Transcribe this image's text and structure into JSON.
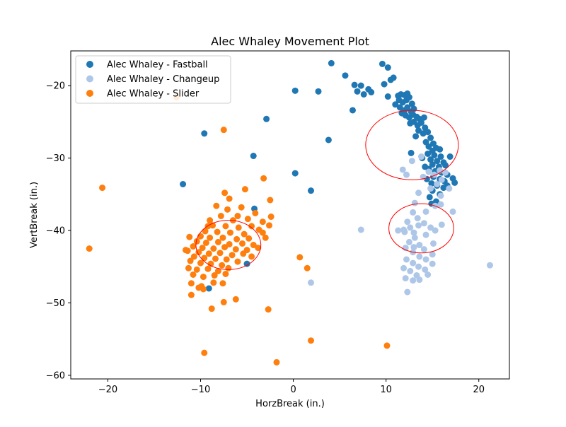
{
  "chart_data": {
    "type": "scatter",
    "title": "Alec Whaley Movement Plot",
    "xlabel": "HorzBreak (in.)",
    "ylabel": "VertBreak (in.)",
    "xlim": [
      -24,
      23.3
    ],
    "ylim": [
      -60.5,
      -15.2
    ],
    "xticks": [
      -20,
      -10,
      0,
      10,
      20
    ],
    "xtick_labels": [
      "−20",
      "−10",
      "0",
      "10",
      "20"
    ],
    "yticks": [
      -20,
      -30,
      -40,
      -50,
      -60
    ],
    "ytick_labels": [
      "−20",
      "−30",
      "−40",
      "−50",
      "−60"
    ],
    "grid": false,
    "legend_position": "top-left",
    "series": [
      {
        "name": "Alec Whaley - Fastball",
        "color": "#1f77b4",
        "points": [
          [
            4.1,
            -16.9
          ],
          [
            9.6,
            -17.0
          ],
          [
            10.2,
            -17.5
          ],
          [
            5.6,
            -18.6
          ],
          [
            6.6,
            -19.9
          ],
          [
            7.3,
            -20.0
          ],
          [
            6.9,
            -20.8
          ],
          [
            8.1,
            -20.5
          ],
          [
            8.4,
            -20.9
          ],
          [
            7.6,
            -21.2
          ],
          [
            10.2,
            -21.5
          ],
          [
            9.8,
            -19.8
          ],
          [
            10.5,
            -19.2
          ],
          [
            10.8,
            -18.9
          ],
          [
            0.2,
            -20.7
          ],
          [
            2.7,
            -20.8
          ],
          [
            6.4,
            -23.4
          ],
          [
            3.8,
            -27.5
          ],
          [
            -9.6,
            -26.6
          ],
          [
            -2.9,
            -24.6
          ],
          [
            -4.3,
            -29.7
          ],
          [
            -11.9,
            -33.6
          ],
          [
            0.2,
            -32.1
          ],
          [
            1.9,
            -34.5
          ],
          [
            -4.2,
            -37.0
          ],
          [
            -5.0,
            -44.6
          ],
          [
            -9.1,
            -48.0
          ],
          [
            11.3,
            -21.4
          ],
          [
            11.6,
            -21.2
          ],
          [
            12.0,
            -21.3
          ],
          [
            12.3,
            -21.1
          ],
          [
            11.4,
            -22.0
          ],
          [
            11.8,
            -22.3
          ],
          [
            12.2,
            -22.0
          ],
          [
            12.5,
            -21.6
          ],
          [
            12.8,
            -22.5
          ],
          [
            11.0,
            -22.6
          ],
          [
            11.5,
            -23.0
          ],
          [
            12.0,
            -23.4
          ],
          [
            12.3,
            -23.0
          ],
          [
            12.7,
            -23.6
          ],
          [
            13.0,
            -23.2
          ],
          [
            11.7,
            -23.8
          ],
          [
            12.1,
            -24.1
          ],
          [
            12.5,
            -24.4
          ],
          [
            12.9,
            -24.0
          ],
          [
            13.3,
            -24.3
          ],
          [
            13.6,
            -24.6
          ],
          [
            13.0,
            -25.0
          ],
          [
            12.6,
            -25.2
          ],
          [
            13.4,
            -25.5
          ],
          [
            13.8,
            -25.1
          ],
          [
            14.1,
            -24.4
          ],
          [
            14.2,
            -25.8
          ],
          [
            13.5,
            -26.2
          ],
          [
            14.0,
            -26.6
          ],
          [
            14.5,
            -26.4
          ],
          [
            13.2,
            -27.0
          ],
          [
            14.8,
            -27.2
          ],
          [
            14.3,
            -27.8
          ],
          [
            15.1,
            -28.0
          ],
          [
            14.6,
            -28.4
          ],
          [
            15.4,
            -28.6
          ],
          [
            15.0,
            -29.0
          ],
          [
            15.8,
            -28.8
          ],
          [
            14.5,
            -29.4
          ],
          [
            15.2,
            -29.6
          ],
          [
            15.9,
            -29.8
          ],
          [
            14.8,
            -30.2
          ],
          [
            15.5,
            -30.4
          ],
          [
            16.2,
            -30.6
          ],
          [
            15.0,
            -30.9
          ],
          [
            15.7,
            -31.2
          ],
          [
            16.4,
            -31.0
          ],
          [
            14.6,
            -31.5
          ],
          [
            15.3,
            -31.8
          ],
          [
            16.0,
            -32.0
          ],
          [
            16.6,
            -32.3
          ],
          [
            15.1,
            -32.6
          ],
          [
            15.8,
            -32.9
          ],
          [
            16.3,
            -33.2
          ],
          [
            14.9,
            -33.5
          ],
          [
            15.5,
            -33.8
          ],
          [
            16.2,
            -34.1
          ],
          [
            15.0,
            -34.5
          ],
          [
            15.8,
            -35.0
          ],
          [
            14.7,
            -35.4
          ],
          [
            15.4,
            -36.0
          ],
          [
            14.9,
            -36.3
          ],
          [
            17.4,
            -33.4
          ],
          [
            17.2,
            -32.8
          ],
          [
            12.7,
            -29.3
          ],
          [
            13.9,
            -30.0
          ],
          [
            14.2,
            -31.2
          ],
          [
            14.4,
            -32.9
          ],
          [
            16.9,
            -29.8
          ],
          [
            16.6,
            -33.8
          ]
        ]
      },
      {
        "name": "Alec Whaley - Changeup",
        "color": "#aec7e8",
        "points": [
          [
            12.8,
            -30.4
          ],
          [
            13.8,
            -29.8
          ],
          [
            11.8,
            -31.6
          ],
          [
            12.2,
            -32.3
          ],
          [
            14.0,
            -32.6
          ],
          [
            14.6,
            -31.9
          ],
          [
            15.2,
            -32.3
          ],
          [
            15.8,
            -31.7
          ],
          [
            16.0,
            -33.0
          ],
          [
            16.4,
            -32.0
          ],
          [
            15.5,
            -33.6
          ],
          [
            14.8,
            -34.2
          ],
          [
            13.5,
            -34.8
          ],
          [
            15.9,
            -35.2
          ],
          [
            16.8,
            -34.2
          ],
          [
            15.3,
            -36.6
          ],
          [
            13.1,
            -36.2
          ],
          [
            17.2,
            -37.4
          ],
          [
            15.9,
            -36.4
          ],
          [
            12.9,
            -37.5
          ],
          [
            14.3,
            -37.4
          ],
          [
            13.4,
            -38.3
          ],
          [
            12.3,
            -38.8
          ],
          [
            12.6,
            -39.6
          ],
          [
            11.9,
            -39.9
          ],
          [
            13.0,
            -40.3
          ],
          [
            13.5,
            -39.3
          ],
          [
            14.1,
            -39.0
          ],
          [
            14.8,
            -39.6
          ],
          [
            15.3,
            -40.0
          ],
          [
            16.0,
            -39.2
          ],
          [
            14.3,
            -40.6
          ],
          [
            13.1,
            -41.0
          ],
          [
            12.5,
            -41.6
          ],
          [
            12.1,
            -42.4
          ],
          [
            13.6,
            -42.0
          ],
          [
            14.1,
            -42.6
          ],
          [
            15.1,
            -41.8
          ],
          [
            12.9,
            -43.0
          ],
          [
            13.6,
            -43.6
          ],
          [
            14.3,
            -44.0
          ],
          [
            15.0,
            -43.3
          ],
          [
            12.2,
            -44.0
          ],
          [
            12.9,
            -44.5
          ],
          [
            13.5,
            -45.0
          ],
          [
            14.2,
            -45.4
          ],
          [
            15.0,
            -44.6
          ],
          [
            11.9,
            -45.2
          ],
          [
            12.6,
            -45.6
          ],
          [
            13.3,
            -46.2
          ],
          [
            14.5,
            -46.1
          ],
          [
            12.1,
            -46.6
          ],
          [
            12.9,
            -46.9
          ],
          [
            13.6,
            -46.8
          ],
          [
            12.3,
            -48.5
          ],
          [
            11.3,
            -40.0
          ],
          [
            7.3,
            -39.9
          ],
          [
            1.9,
            -47.2
          ],
          [
            21.2,
            -44.8
          ],
          [
            13.0,
            -42.3
          ],
          [
            12.0,
            -40.2
          ]
        ]
      },
      {
        "name": "Alec Whaley - Slider",
        "color": "#ff7f0e",
        "points": [
          [
            -12.6,
            -21.6
          ],
          [
            -7.5,
            -26.1
          ],
          [
            -20.6,
            -34.1
          ],
          [
            -22.0,
            -42.5
          ],
          [
            -7.4,
            -34.8
          ],
          [
            -3.2,
            -32.8
          ],
          [
            -5.2,
            -34.3
          ],
          [
            -2.5,
            -35.8
          ],
          [
            -6.9,
            -35.6
          ],
          [
            -8.3,
            -36.6
          ],
          [
            -7.1,
            -37.1
          ],
          [
            -5.6,
            -36.8
          ],
          [
            -4.1,
            -37.6
          ],
          [
            -6.0,
            -38.0
          ],
          [
            -7.8,
            -38.0
          ],
          [
            -9.0,
            -38.6
          ],
          [
            -6.5,
            -38.6
          ],
          [
            -4.9,
            -38.4
          ],
          [
            -3.3,
            -38.8
          ],
          [
            -2.4,
            -38.1
          ],
          [
            -2.6,
            -39.3
          ],
          [
            -8.7,
            -39.3
          ],
          [
            -7.3,
            -39.4
          ],
          [
            -5.9,
            -39.6
          ],
          [
            -4.5,
            -39.4
          ],
          [
            -3.7,
            -39.9
          ],
          [
            -9.5,
            -40.1
          ],
          [
            -8.2,
            -40.2
          ],
          [
            -6.8,
            -40.3
          ],
          [
            -5.3,
            -40.5
          ],
          [
            -3.3,
            -40.3
          ],
          [
            -10.0,
            -40.8
          ],
          [
            -9.0,
            -41.0
          ],
          [
            -7.6,
            -41.0
          ],
          [
            -6.1,
            -41.2
          ],
          [
            -4.8,
            -41.1
          ],
          [
            -3.0,
            -41.0
          ],
          [
            -11.2,
            -40.9
          ],
          [
            -10.4,
            -41.5
          ],
          [
            -9.4,
            -41.7
          ],
          [
            -8.1,
            -41.6
          ],
          [
            -6.9,
            -41.9
          ],
          [
            -5.5,
            -41.8
          ],
          [
            -4.3,
            -42.0
          ],
          [
            -10.8,
            -42.2
          ],
          [
            -9.8,
            -42.4
          ],
          [
            -8.6,
            -42.5
          ],
          [
            -7.4,
            -42.3
          ],
          [
            -6.2,
            -42.6
          ],
          [
            -5.0,
            -42.7
          ],
          [
            -3.8,
            -42.4
          ],
          [
            -11.4,
            -42.8
          ],
          [
            -10.2,
            -43.0
          ],
          [
            -9.1,
            -43.2
          ],
          [
            -7.9,
            -43.1
          ],
          [
            -6.6,
            -43.4
          ],
          [
            -5.4,
            -43.2
          ],
          [
            -4.5,
            -43.6
          ],
          [
            -10.7,
            -43.6
          ],
          [
            -9.6,
            -43.8
          ],
          [
            -8.4,
            -43.9
          ],
          [
            -7.2,
            -44.0
          ],
          [
            -6.0,
            -44.3
          ],
          [
            -11.1,
            -44.2
          ],
          [
            -10.0,
            -44.5
          ],
          [
            -8.9,
            -44.6
          ],
          [
            -7.7,
            -44.8
          ],
          [
            -11.3,
            -45.2
          ],
          [
            -10.4,
            -45.4
          ],
          [
            -9.2,
            -45.3
          ],
          [
            -8.1,
            -45.6
          ],
          [
            -7.0,
            -45.2
          ],
          [
            -10.8,
            -46.1
          ],
          [
            -9.7,
            -46.4
          ],
          [
            -8.5,
            -46.2
          ],
          [
            -7.3,
            -46.0
          ],
          [
            -11.0,
            -47.3
          ],
          [
            -9.9,
            -47.7
          ],
          [
            -8.6,
            -47.2
          ],
          [
            -7.6,
            -47.3
          ],
          [
            -9.7,
            -48.1
          ],
          [
            -10.2,
            -47.9
          ],
          [
            -11.0,
            -48.9
          ],
          [
            -8.8,
            -50.8
          ],
          [
            -7.5,
            -49.9
          ],
          [
            -6.2,
            -49.5
          ],
          [
            -2.7,
            -50.9
          ],
          [
            0.7,
            -43.7
          ],
          [
            1.5,
            -45.2
          ],
          [
            1.9,
            -55.2
          ],
          [
            -1.8,
            -58.2
          ],
          [
            -9.6,
            -56.9
          ],
          [
            10.1,
            -55.9
          ],
          [
            -11.6,
            -42.7
          ],
          [
            -9.2,
            -39.4
          ]
        ]
      }
    ],
    "circles": [
      {
        "cx": 12.8,
        "cy": -28.2,
        "rx": 5.0,
        "ry": 4.8,
        "color": "#ff0000"
      },
      {
        "cx": 13.8,
        "cy": -39.7,
        "rx": 3.5,
        "ry": 3.4,
        "color": "#ff0000"
      },
      {
        "cx": -7.0,
        "cy": -42.0,
        "rx": 3.5,
        "ry": 3.4,
        "color": "#ff0000"
      }
    ]
  }
}
